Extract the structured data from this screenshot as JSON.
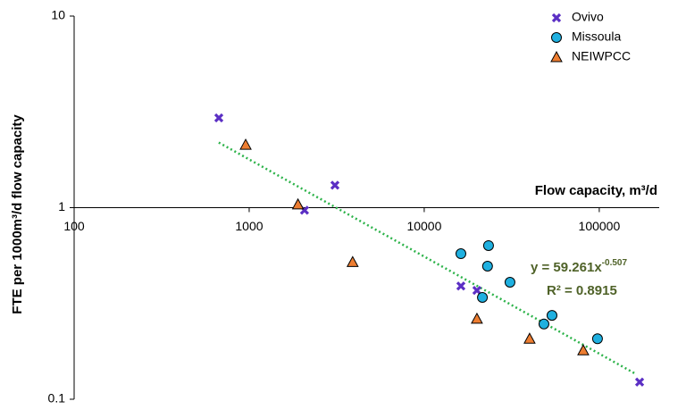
{
  "chart_data": {
    "type": "scatter",
    "x_label": "Flow capacity, m³/d",
    "y_label": "FTE per 1000m³/d flow capacity",
    "x_log": true,
    "y_log": true,
    "xlim": [
      100,
      220000
    ],
    "ylim": [
      0.1,
      10
    ],
    "xticks": [
      100,
      1000,
      10000,
      100000
    ],
    "yticks": [
      0.1,
      1,
      10
    ],
    "x_axis_crosses": 1,
    "grid": false,
    "legend": "top-right",
    "series": [
      {
        "name": "Ovivo",
        "marker": "x",
        "color": "#5b2fc4",
        "x": [
          671,
          3090,
          2070,
          16200,
          20000,
          170000
        ],
        "values": [
          2.94,
          1.31,
          0.97,
          0.39,
          0.37,
          0.123
        ]
      },
      {
        "name": "Missoula",
        "marker": "circle",
        "color": "#1fb0e0",
        "x": [
          16200,
          23300,
          23000,
          21500,
          30900,
          53700,
          48300,
          97700
        ],
        "values": [
          0.575,
          0.634,
          0.495,
          0.34,
          0.408,
          0.274,
          0.247,
          0.207
        ]
      },
      {
        "name": "NEIWPCC",
        "marker": "triangle",
        "color": "#ed7d31",
        "x": [
          955,
          1900,
          3900,
          20000,
          40000,
          81000
        ],
        "values": [
          2.13,
          1.04,
          0.52,
          0.263,
          0.207,
          0.18
        ]
      }
    ],
    "trendline": {
      "coefficient": 59.261,
      "exponent": -0.507,
      "x": [
        670,
        160000
      ],
      "color": "#2db34a",
      "r_squared": 0.8915,
      "equation_label": "y = 59.261x",
      "exponent_label": "-0.507",
      "r_squared_label": "R² = 0.8915",
      "label_color": "#4f6228"
    }
  }
}
